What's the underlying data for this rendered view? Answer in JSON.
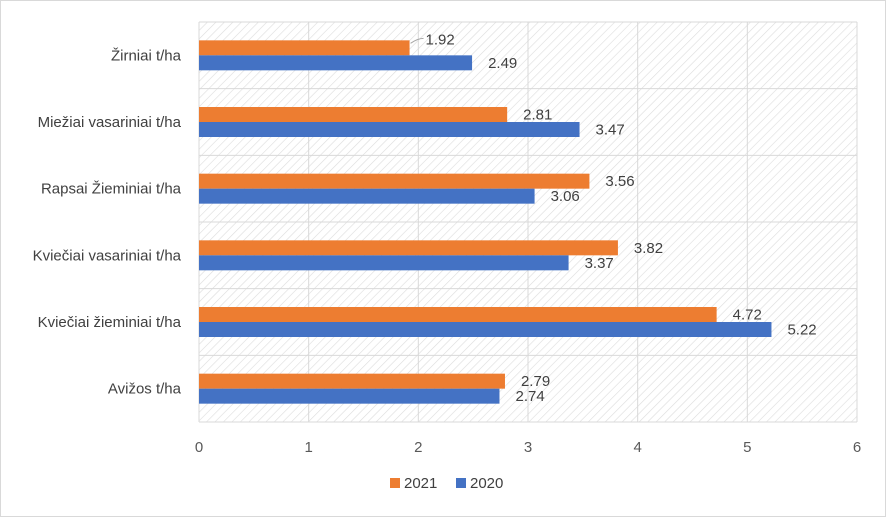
{
  "chart_data": {
    "type": "bar",
    "orientation": "horizontal",
    "categories": [
      "Žirniai t/ha",
      "Miežiai vasariniai t/ha",
      "Rapsai Žieminiai t/ha",
      "Kviečiai vasariniai t/ha",
      "Kviečiai žieminiai t/ha",
      "Avižos t/ha"
    ],
    "series": [
      {
        "name": "2021",
        "color": "#ED7D31",
        "values": [
          1.92,
          2.81,
          3.56,
          3.82,
          4.72,
          2.79
        ],
        "labels": [
          "1.92",
          "2.81",
          "3.56",
          "3.82",
          "4.72",
          "2.79"
        ]
      },
      {
        "name": "2020",
        "color": "#4472C4",
        "values": [
          2.49,
          3.47,
          3.06,
          3.37,
          5.22,
          2.74
        ],
        "labels": [
          "2.49",
          "3.47",
          "3.06",
          "3.37",
          "5.22",
          "2.74"
        ]
      }
    ],
    "xlim": [
      0,
      6
    ],
    "xticks": [
      "0",
      "1",
      "2",
      "3",
      "4",
      "5",
      "6"
    ],
    "grid": true,
    "legend_position": "bottom",
    "title": "",
    "xlabel": "",
    "ylabel": ""
  }
}
